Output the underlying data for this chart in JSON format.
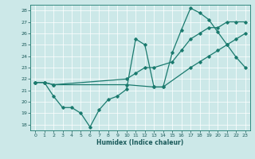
{
  "title": "",
  "xlabel": "Humidex (Indice chaleur)",
  "background_color": "#cce8e8",
  "grid_color": "#ffffff",
  "line_color": "#1a7a6e",
  "xlim": [
    -0.5,
    23.5
  ],
  "ylim": [
    17.5,
    28.5
  ],
  "yticks": [
    18,
    19,
    20,
    21,
    22,
    23,
    24,
    25,
    26,
    27,
    28
  ],
  "xticks": [
    0,
    1,
    2,
    3,
    4,
    5,
    6,
    7,
    8,
    9,
    10,
    11,
    12,
    13,
    14,
    15,
    16,
    17,
    18,
    19,
    20,
    21,
    22,
    23
  ],
  "series1_x": [
    0,
    1,
    2,
    3,
    4,
    5,
    6,
    7,
    8,
    9,
    10,
    11,
    12,
    13,
    14,
    15,
    16,
    17,
    18,
    19,
    20,
    21,
    22,
    23
  ],
  "series1_y": [
    21.7,
    21.7,
    20.5,
    19.5,
    19.5,
    19.0,
    17.8,
    19.3,
    20.2,
    20.5,
    21.1,
    25.5,
    25.0,
    21.3,
    21.3,
    24.3,
    26.3,
    28.2,
    27.8,
    27.2,
    26.1,
    25.0,
    23.9,
    23.0
  ],
  "series2_x": [
    0,
    1,
    2,
    10,
    13,
    14,
    17,
    18,
    19,
    20,
    21,
    22,
    23
  ],
  "series2_y": [
    21.7,
    21.7,
    21.5,
    21.5,
    21.3,
    21.3,
    23.0,
    23.5,
    24.0,
    24.5,
    25.0,
    25.5,
    26.0
  ],
  "series3_x": [
    0,
    1,
    2,
    10,
    11,
    12,
    13,
    15,
    16,
    17,
    18,
    19,
    20,
    21,
    22,
    23
  ],
  "series3_y": [
    21.7,
    21.7,
    21.5,
    22.0,
    22.5,
    23.0,
    23.0,
    23.5,
    24.5,
    25.5,
    26.0,
    26.5,
    26.5,
    27.0,
    27.0,
    27.0
  ]
}
